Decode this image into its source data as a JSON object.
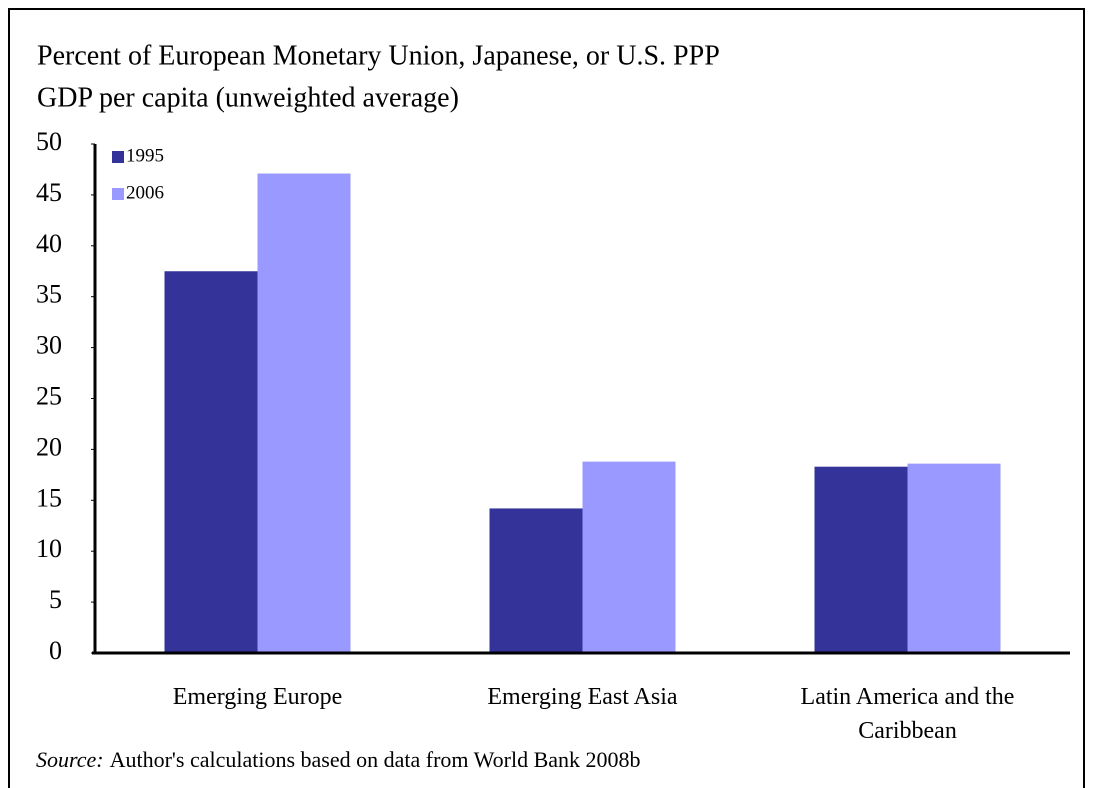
{
  "chart_data": {
    "type": "bar",
    "title": [
      "Percent of European Monetary Union, Japanese, or U.S. PPP",
      "GDP per capita (unweighted average)"
    ],
    "categories": [
      "Emerging Europe",
      "Emerging East Asia",
      "Latin America and the Caribbean"
    ],
    "series": [
      {
        "name": "1995",
        "color": "#333399",
        "values": [
          37.5,
          14.2,
          18.3
        ]
      },
      {
        "name": "2006",
        "color": "#9999ff",
        "values": [
          47.1,
          18.8,
          18.6
        ]
      }
    ],
    "ylim": [
      0,
      50
    ],
    "yticks": [
      0,
      5,
      10,
      15,
      20,
      25,
      30,
      35,
      40,
      45,
      50
    ],
    "legend": "top-left",
    "source_label": "Source:",
    "source": "Author's calculations based on data from World Bank 2008b"
  }
}
